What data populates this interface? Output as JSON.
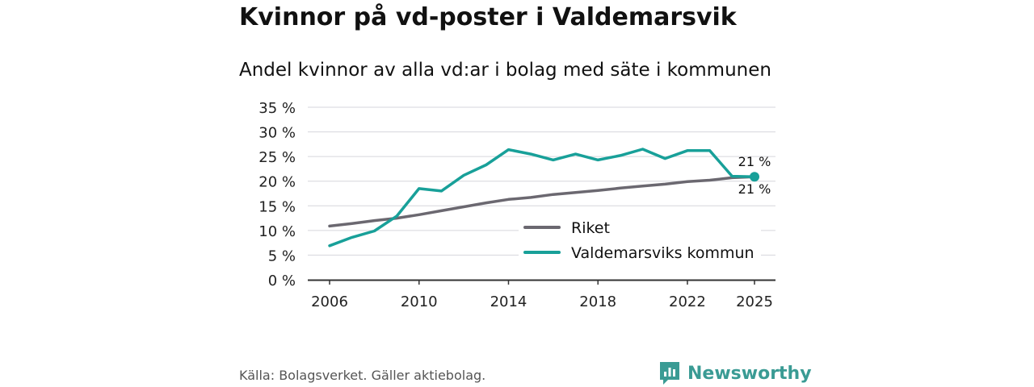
{
  "title": "Kvinnor på vd-poster i Valdemarsvik",
  "subtitle": "Andel kvinnor av alla vd:ar i bolag med säte i kommunen",
  "source": "Källa: Bolagsverket. Gäller aktiebolag.",
  "brand": "Newsworthy",
  "colors": {
    "riket": "#6b6870",
    "kommun": "#18a099",
    "grid": "#d6d6dc",
    "axis": "#333333",
    "brand": "#3a9b94"
  },
  "chart_data": {
    "type": "line",
    "x": [
      2006,
      2007,
      2008,
      2009,
      2010,
      2011,
      2012,
      2013,
      2014,
      2015,
      2016,
      2017,
      2018,
      2019,
      2020,
      2021,
      2022,
      2023,
      2024,
      2025
    ],
    "series": [
      {
        "name": "Riket",
        "color": "#6b6870",
        "values": [
          10.9,
          11.4,
          12.0,
          12.5,
          13.2,
          14.0,
          14.8,
          15.6,
          16.3,
          16.7,
          17.3,
          17.7,
          18.1,
          18.6,
          19.0,
          19.4,
          19.9,
          20.2,
          20.7,
          20.9
        ]
      },
      {
        "name": "Valdemarsviks kommun",
        "color": "#18a099",
        "values": [
          6.9,
          8.6,
          9.9,
          12.9,
          18.5,
          18.0,
          21.2,
          23.3,
          26.4,
          25.5,
          24.3,
          25.5,
          24.3,
          25.2,
          26.5,
          24.6,
          26.2,
          26.2,
          21.0,
          20.9
        ]
      }
    ],
    "end_labels": {
      "Valdemarsviks kommun": "21 %",
      "Riket": "21 %"
    },
    "xticks": [
      2006,
      2010,
      2014,
      2018,
      2022,
      2025
    ],
    "yticks": [
      0,
      5,
      10,
      15,
      20,
      25,
      30,
      35
    ],
    "ytick_labels": [
      "0 %",
      "5 %",
      "10 %",
      "15 %",
      "20 %",
      "25 %",
      "30 %",
      "35 %"
    ],
    "ylim": [
      0,
      35
    ],
    "xlim": [
      2006,
      2025
    ],
    "xlabel": "",
    "ylabel": "",
    "legend": [
      "Riket",
      "Valdemarsviks kommun"
    ],
    "legend_position": "bottom-right",
    "grid": true
  }
}
